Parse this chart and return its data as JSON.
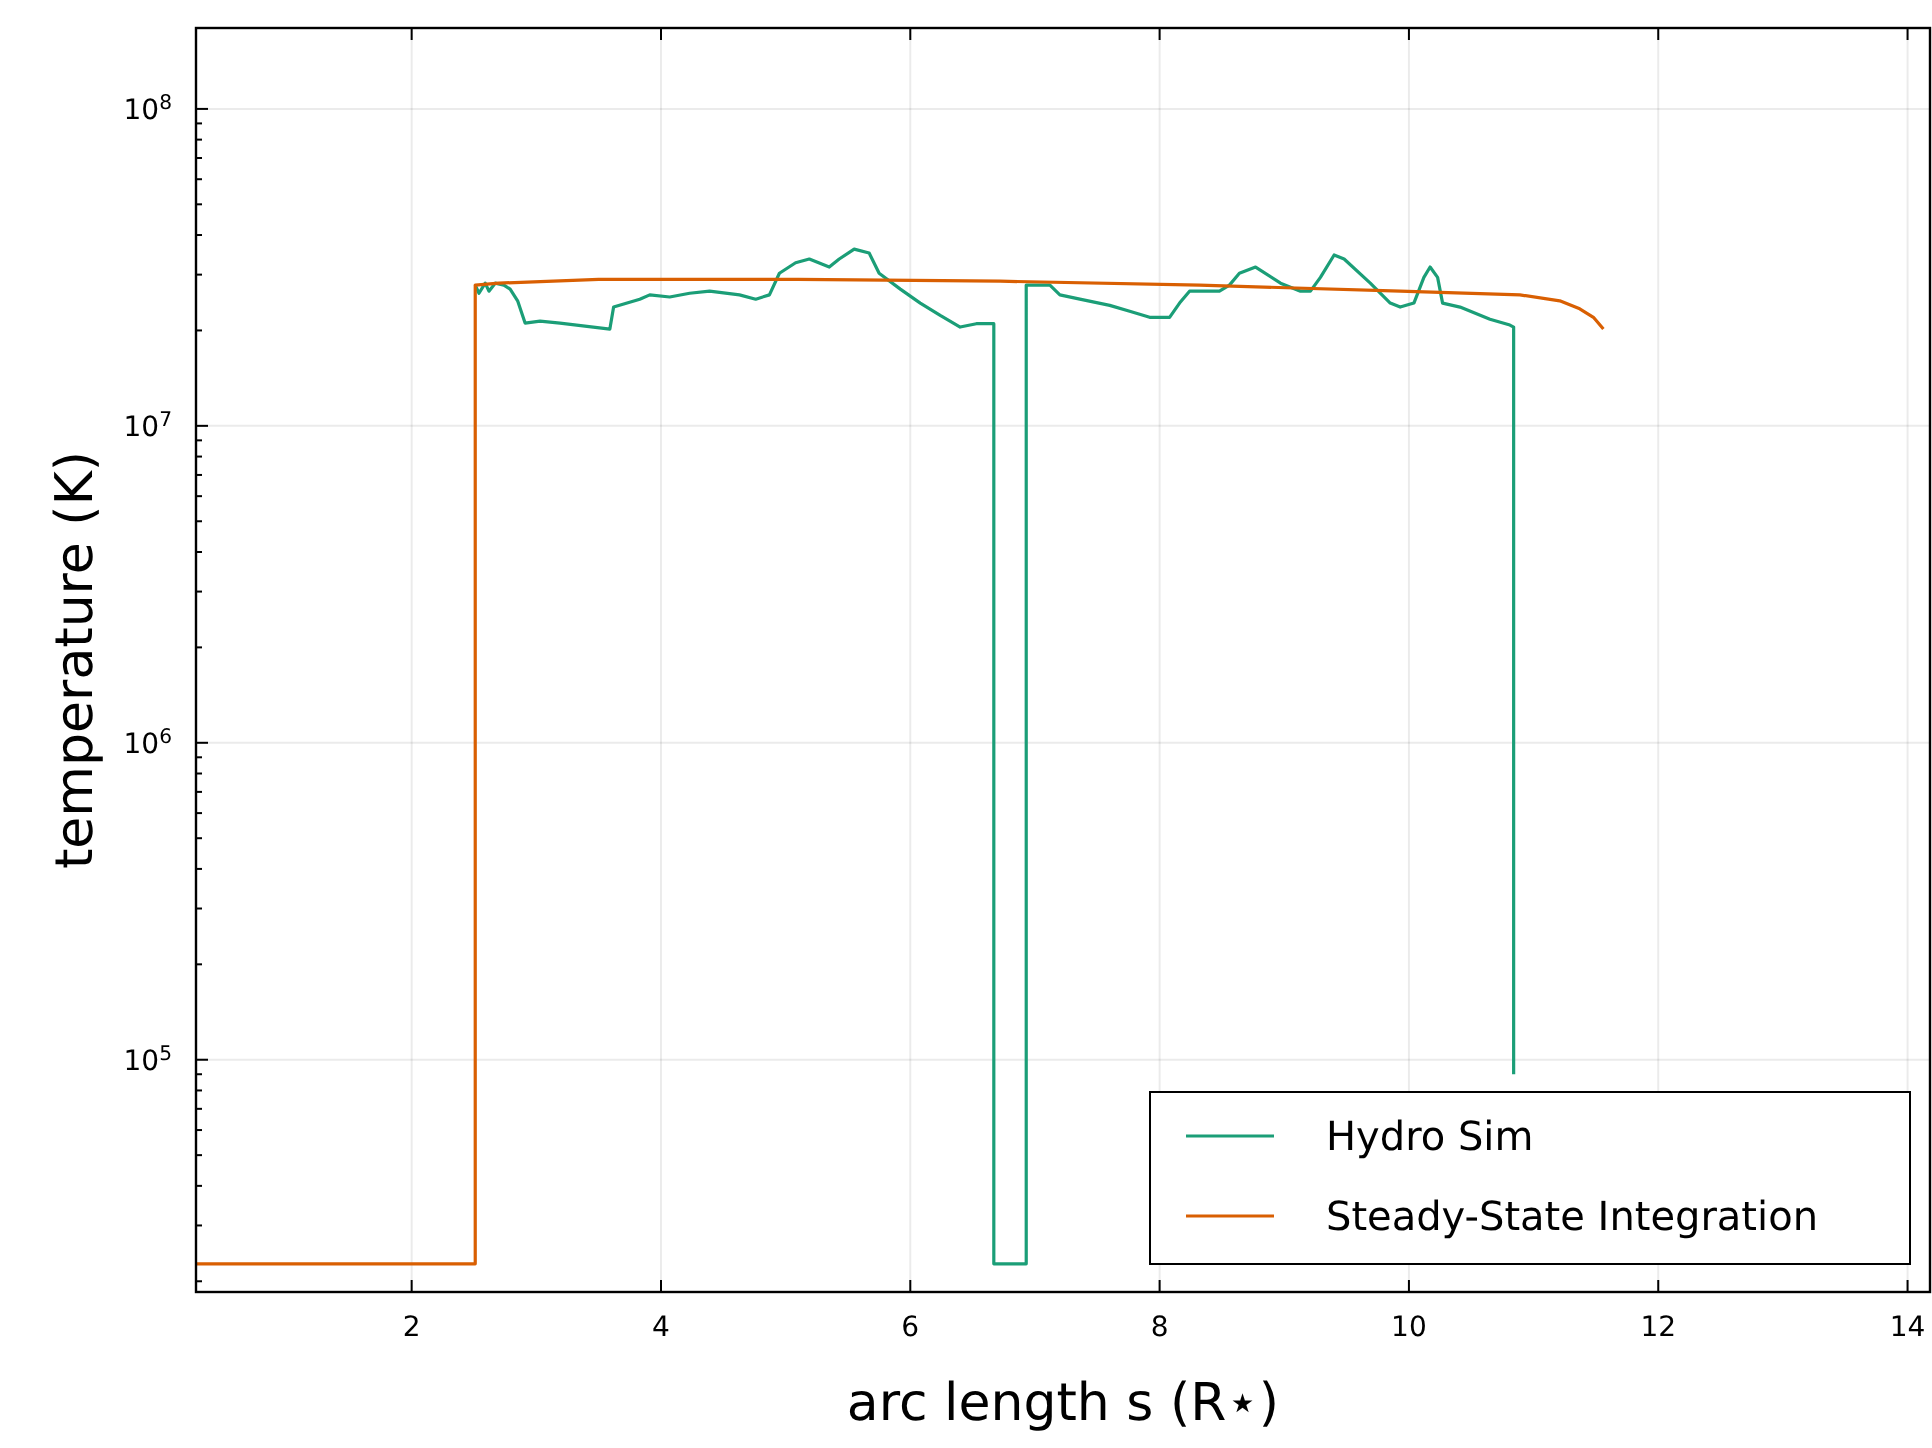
{
  "chart_data": {
    "type": "line",
    "xlabel": "arc length s (R⋆)",
    "ylabel": "temperature (K)",
    "log": "y",
    "grid": true,
    "legend": "bottom right",
    "line_style": "solid",
    "marker": "none",
    "xlim": [
      0.27,
      14.18
    ],
    "ylim": [
      18500,
      180000000
    ],
    "xticks": [
      2,
      4,
      6,
      8,
      10,
      12,
      14
    ],
    "yticks": [
      {
        "value": 100000,
        "label": "10$^{5}$"
      },
      {
        "value": 1000000,
        "label": "10$^{6}$"
      },
      {
        "value": 10000000,
        "label": "10$^{7}$"
      },
      {
        "value": 100000000,
        "label": "10$^{8}$"
      }
    ],
    "series": [
      {
        "name": "Hydro Sim",
        "color": "#1b9e77",
        "x": [
          2.51,
          2.54,
          2.59,
          2.62,
          2.67,
          2.74,
          2.79,
          2.85,
          2.91,
          3.03,
          3.19,
          3.59,
          3.62,
          3.83,
          3.91,
          4.07,
          4.23,
          4.39,
          4.63,
          4.76,
          4.87,
          4.95,
          5.08,
          5.19,
          5.35,
          5.43,
          5.55,
          5.67,
          5.75,
          5.92,
          6.08,
          6.24,
          6.4,
          6.53,
          6.67,
          6.67,
          6.93,
          6.93,
          7.12,
          7.2,
          7.36,
          7.6,
          7.76,
          7.92,
          8.08,
          8.16,
          8.24,
          8.48,
          8.56,
          8.64,
          8.77,
          8.97,
          9.13,
          9.21,
          9.29,
          9.4,
          9.48,
          9.69,
          9.85,
          9.93,
          10.04,
          10.12,
          10.17,
          10.23,
          10.27,
          10.41,
          10.65,
          10.81,
          10.84,
          10.84,
          10.84
        ],
        "values": [
          27800000,
          26200000,
          28200000,
          26600000,
          28200000,
          27800000,
          27000000,
          24800000,
          21100000,
          21400000,
          21100000,
          20200000,
          23700000,
          25100000,
          25900000,
          25500000,
          26200000,
          26600000,
          25900000,
          25100000,
          25900000,
          30300000,
          32700000,
          33600000,
          31700000,
          33600000,
          36100000,
          35100000,
          30300000,
          27000000,
          24400000,
          22300000,
          20500000,
          21000000,
          21000000,
          22700,
          22700,
          27800000,
          27800000,
          25900000,
          25100000,
          24000000,
          23000000,
          22000000,
          22000000,
          24400000,
          26600000,
          26600000,
          27800000,
          30300000,
          31700000,
          28200000,
          26600000,
          26600000,
          29400000,
          34600000,
          33600000,
          28200000,
          24400000,
          23700000,
          24400000,
          29400000,
          31700000,
          29400000,
          24400000,
          23700000,
          21700000,
          20800000,
          20500000,
          17500000,
          90000
        ]
      },
      {
        "name": "Steady-State Integration",
        "color": "#d95f02",
        "x": [
          0.27,
          2.51,
          2.51,
          2.7,
          3.5,
          5.1,
          6.72,
          8.32,
          9.93,
          10.89,
          11.21,
          11.37,
          11.48,
          11.56
        ],
        "values": [
          22700,
          22700,
          27800000,
          28200000,
          29000000,
          29000000,
          28600000,
          27800000,
          26600000,
          25900000,
          24800000,
          23400000,
          22000000,
          20200000
        ]
      }
    ]
  }
}
